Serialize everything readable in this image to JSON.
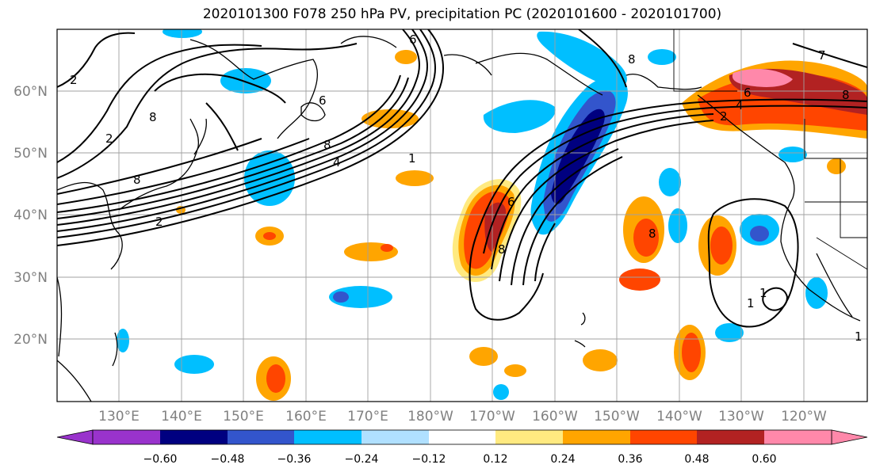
{
  "title": "2020101300 F078 250 hPa PV, precipitation PC (2020101600 - 2020101700)",
  "map": {
    "lat_labels": [
      "60°N",
      "50°N",
      "40°N",
      "30°N",
      "20°N"
    ],
    "lon_labels": [
      "130°E",
      "140°E",
      "150°E",
      "160°E",
      "170°E",
      "180°W",
      "170°W",
      "160°W",
      "150°W",
      "140°W",
      "130°W",
      "120°W"
    ],
    "contour_labels": [
      "2",
      "2",
      "8",
      "8",
      "6",
      "2",
      "1",
      "4",
      "8",
      "6",
      "1",
      "8",
      "7",
      "8",
      "6",
      "4",
      "2",
      "8",
      "6",
      "8",
      "1",
      "1"
    ]
  },
  "colorbar": {
    "tick_labels": [
      "−0.60",
      "−0.48",
      "−0.36",
      "−0.24",
      "−0.12",
      "0.12",
      "0.24",
      "0.36",
      "0.48",
      "0.60"
    ],
    "colors": [
      "#9933cc",
      "#000080",
      "#3355cc",
      "#00bfff",
      "#b0e0ff",
      "#ffffff",
      "#ffea80",
      "#ffa500",
      "#ff4500",
      "#b22222",
      "#ff88aa"
    ]
  }
}
